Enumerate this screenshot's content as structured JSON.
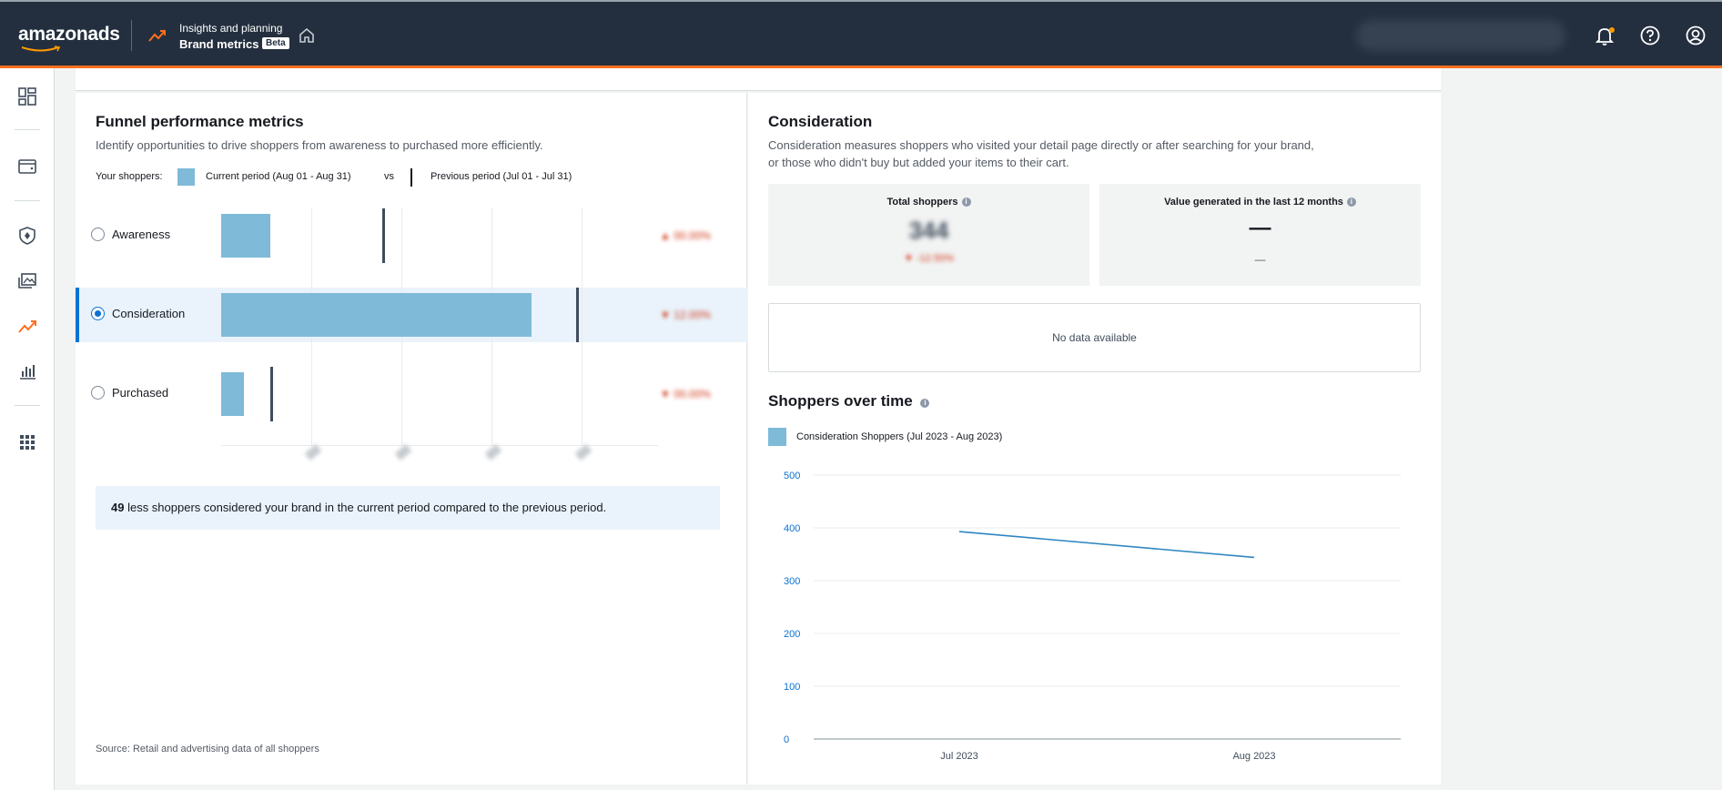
{
  "header": {
    "logo": "amazonads",
    "app_subtitle": "Insights and planning",
    "app_title": "Brand metrics",
    "beta_badge": "Beta"
  },
  "funnel": {
    "title": "Funnel performance metrics",
    "description": "Identify opportunities to drive shoppers from awareness to purchased more efficiently.",
    "legend_prefix": "Your shoppers:",
    "legend_current": "Current period (Aug 01 - Aug 31)",
    "legend_vs": "vs",
    "legend_previous": "Previous period (Jul 01 - Jul 31)",
    "rows": [
      {
        "label": "Awareness",
        "selected": false
      },
      {
        "label": "Consideration",
        "selected": true
      },
      {
        "label": "Purchased",
        "selected": false
      }
    ],
    "insight_count": "49",
    "insight_text": " less shoppers considered your brand in the current period compared to the previous period.",
    "source": "Source: Retail and advertising data of all shoppers"
  },
  "consideration": {
    "title": "Consideration",
    "description": "Consideration measures shoppers who visited your detail page directly or after searching for your brand, or those who didn't buy but added your items to their cart.",
    "kpi_total_label": "Total shoppers",
    "kpi_value_label": "Value generated in the last 12 months",
    "kpi_value_main": "—",
    "kpi_value_sub": "—",
    "no_data": "No data available"
  },
  "shoppers_over_time": {
    "title": "Shoppers over time",
    "legend": "Consideration Shoppers (Jul 2023 - Aug 2023)"
  },
  "colors": {
    "accent_blue": "#0972d3",
    "bar_blue": "#7fbad8",
    "line_blue": "#2e86c1",
    "header_bg": "#232f3e",
    "header_accent": "#ff6f1f"
  },
  "chart_data": {
    "type": "line",
    "title": "Shoppers over time",
    "x": [
      "Jul 2023",
      "Aug 2023"
    ],
    "series": [
      {
        "name": "Consideration Shoppers (Jul 2023 - Aug 2023)",
        "values": [
          393,
          344
        ]
      }
    ],
    "yticks": [
      0,
      100,
      200,
      300,
      400,
      500
    ],
    "ylim": [
      0,
      500
    ],
    "grid": true,
    "legend_position": "top-left"
  }
}
